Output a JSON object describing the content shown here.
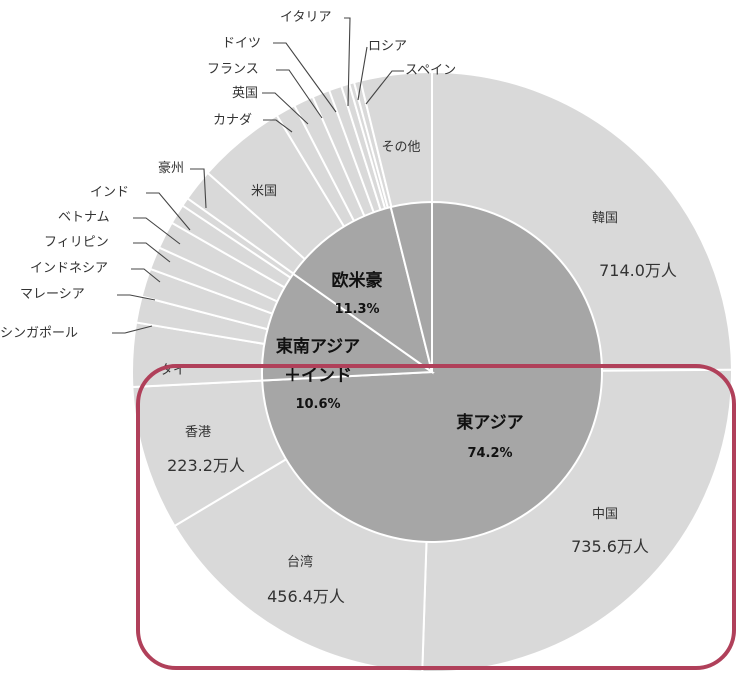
{
  "chart_data": {
    "type": "pie",
    "inner_ring": [
      {
        "name": "東アジア",
        "label": "東アジア",
        "percent_label": "74.2%",
        "value": 74.2
      },
      {
        "name": "東南アジア＋インド",
        "label_lines": [
          "東南アジア",
          "＋インド"
        ],
        "percent_label": "10.6%",
        "value": 10.6
      },
      {
        "name": "欧米豪",
        "label": "欧米豪",
        "percent_label": "11.3%",
        "value": 11.3
      },
      {
        "name": "その他",
        "value": 3.9
      }
    ],
    "outer_ring": [
      {
        "name": "韓国",
        "label": "韓国",
        "value_label": "714.0万人",
        "value": 714.0
      },
      {
        "name": "中国",
        "label": "中国",
        "value_label": "735.6万人",
        "value": 735.6
      },
      {
        "name": "台湾",
        "label": "台湾",
        "value_label": "456.4万人",
        "value": 456.4
      },
      {
        "name": "香港",
        "label": "香港",
        "value_label": "223.2万人",
        "value": 223.2
      },
      {
        "name": "タイ",
        "label": "タイ",
        "value": 98.7
      },
      {
        "name": "シンガポール",
        "label": "シンガポール",
        "value": 40.4
      },
      {
        "name": "マレーシア",
        "label": "マレーシア",
        "value": 44.0
      },
      {
        "name": "インドネシア",
        "label": "インドネシア",
        "value": 35.2
      },
      {
        "name": "フィリピン",
        "label": "フィリピン",
        "value": 42.4
      },
      {
        "name": "ベトナム",
        "label": "ベトナム",
        "value": 30.9
      },
      {
        "name": "インド",
        "label": "インド",
        "value": 13.4
      },
      {
        "name": "豪州",
        "label": "豪州",
        "value": 49.5
      },
      {
        "name": "米国",
        "label": "米国",
        "value": 137.5
      },
      {
        "name": "カナダ",
        "label": "カナダ",
        "value": 30.6
      },
      {
        "name": "英国",
        "label": "英国",
        "value": 31.0
      },
      {
        "name": "フランス",
        "label": "フランス",
        "value": 26.9
      },
      {
        "name": "ドイツ",
        "label": "ドイツ",
        "value": 19.6
      },
      {
        "name": "イタリア",
        "label": "イタリア",
        "value": 12.5
      },
      {
        "name": "ロシア",
        "label": "ロシア",
        "value": 7.7
      },
      {
        "name": "スペイン",
        "label": "スペイン",
        "value": 10.0
      },
      {
        "name": "その他",
        "label": "その他",
        "value": 110.0
      }
    ]
  },
  "colors": {
    "outer": "#d9d9d9",
    "inner": "#a6a6a6",
    "separator": "#ffffff",
    "highlight": "#b0405a",
    "text": "#333333"
  }
}
